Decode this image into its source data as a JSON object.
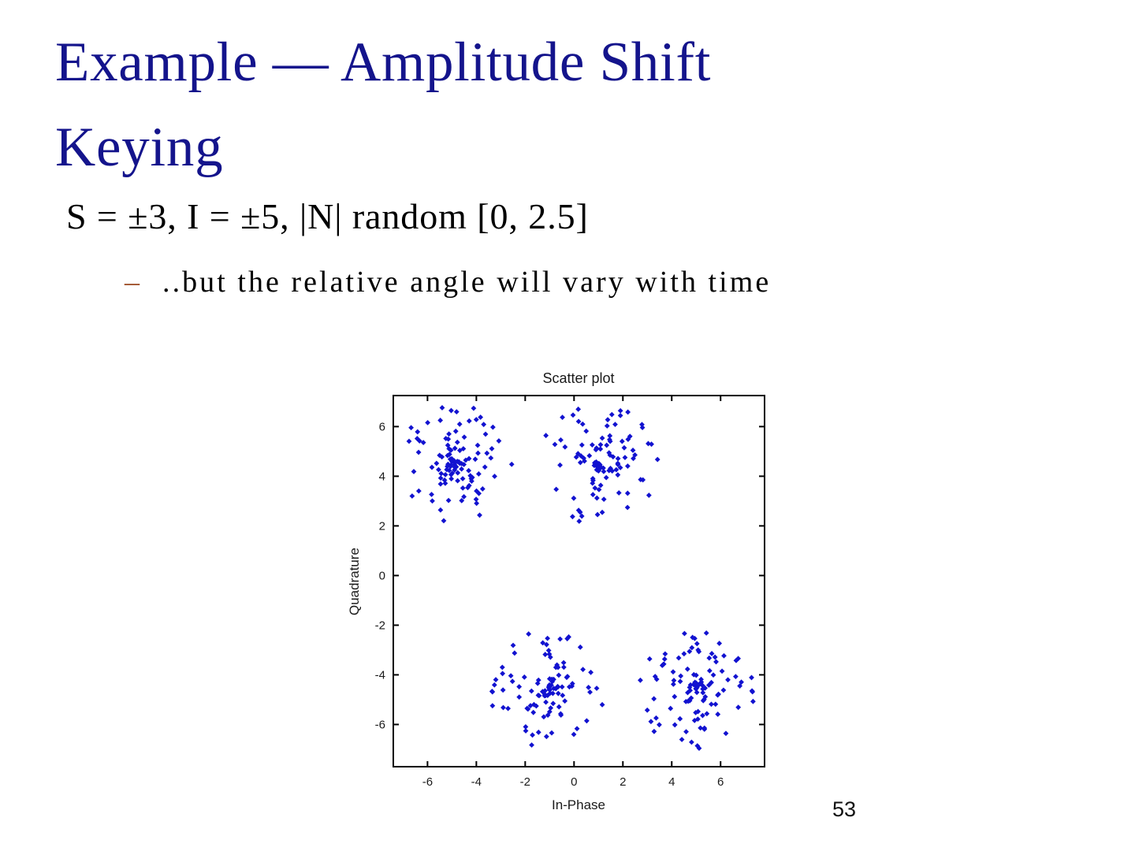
{
  "slide": {
    "title": "Example — Amplitude Shift Keying",
    "title_lines": [
      "Example — Amplitude Shift",
      "Keying"
    ],
    "body_line": "S = ±3, I = ±5, |N| random [0, 2.5]",
    "bullet": {
      "marker": "–",
      "text": "..but the relative angle will vary with time"
    },
    "page_number": "53",
    "colors": {
      "title_text": "#14148C",
      "bullet_marker": "#A0522D",
      "body_text": "#000000"
    }
  },
  "chart_data": {
    "type": "scatter",
    "title": "Scatter plot",
    "xlabel": "In-Phase",
    "ylabel": "Quadrature",
    "xlim": [
      -7.4,
      7.8
    ],
    "ylim": [
      -7.7,
      7.25
    ],
    "xticks": [
      -6,
      -4,
      -2,
      0,
      2,
      4,
      6
    ],
    "yticks": [
      -6,
      -4,
      -2,
      0,
      2,
      4,
      6
    ],
    "grid": false,
    "legend": null,
    "marker": {
      "shape": "diamond",
      "color": "#1212D0",
      "half_size": 3.4
    },
    "clusters": [
      {
        "center": [
          -5.0,
          4.5
        ],
        "count": 110
      },
      {
        "center": [
          1.0,
          4.5
        ],
        "count": 105
      },
      {
        "center": [
          -1.0,
          -4.6
        ],
        "count": 105
      },
      {
        "center": [
          5.0,
          -4.55
        ],
        "count": 110
      }
    ],
    "noise_radius": [
      0,
      2.45
    ],
    "seed": 5353
  }
}
